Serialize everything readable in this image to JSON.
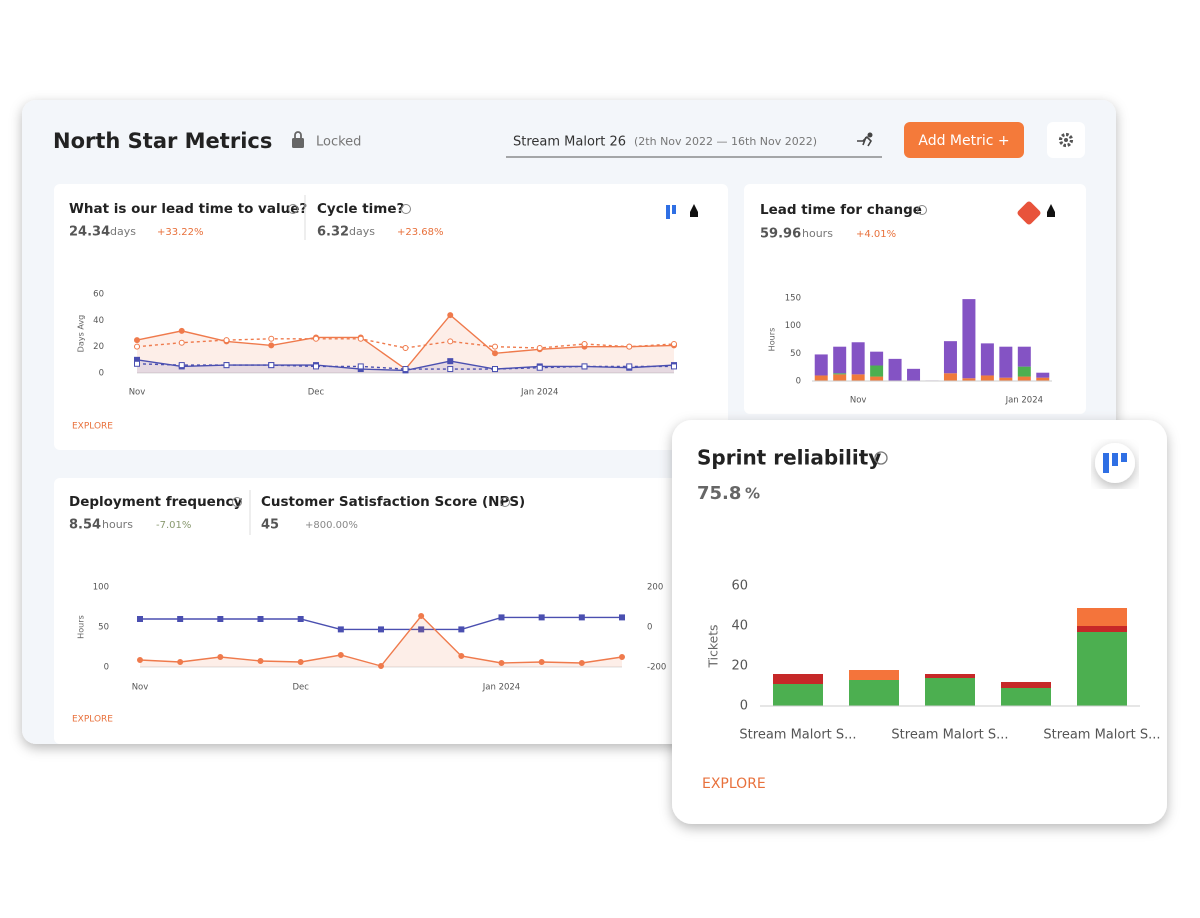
{
  "header": {
    "title": "North Star Metrics",
    "lock_label": "Locked",
    "stream": "Stream Malort 26",
    "date_range": "(2th Nov 2022 — 16th Nov 2022)",
    "add_button": "Add Metric +"
  },
  "cards": [
    {
      "metrics": [
        {
          "title": "What is our lead time to value?",
          "value": 24.34,
          "unit": "days",
          "change": "+33.22%"
        },
        {
          "title": "Cycle time?",
          "value": 6.32,
          "unit": "days",
          "change": "+23.68%"
        }
      ],
      "chart": {
        "type": "line",
        "y_label": "Days Avg",
        "ylim": [
          0,
          60
        ],
        "yticks": [
          0,
          20,
          40,
          60
        ],
        "categories": [
          "Nov",
          null,
          null,
          null,
          "Dec",
          null,
          null,
          null,
          null,
          "Jan 2024",
          null,
          null,
          null
        ],
        "series": [
          {
            "color": "#ef7a4c",
            "values": [
              25,
              32,
              24,
              21,
              27,
              27,
              3,
              44,
              15,
              18,
              20,
              20,
              21
            ],
            "area": true,
            "marker": "circle"
          },
          {
            "color": "#ef7a4c",
            "values": [
              20,
              23,
              25,
              26,
              26,
              26,
              19,
              24,
              20,
              19,
              22,
              20,
              22
            ],
            "dashed": true,
            "marker": "circle-open"
          },
          {
            "color": "#4a4fb0",
            "values": [
              10,
              5,
              6,
              6,
              6,
              3,
              2,
              9,
              3,
              5,
              5,
              4,
              6
            ],
            "area": true,
            "marker": "square"
          },
          {
            "color": "#4a4fb0",
            "values": [
              7,
              6,
              6,
              6,
              5,
              5,
              3,
              3,
              3,
              4,
              5,
              5,
              5
            ],
            "dashed": true,
            "marker": "square-open"
          }
        ]
      },
      "explore": "EXPLORE"
    },
    {
      "metrics": [
        {
          "title": "Lead time for change",
          "value": 59.96,
          "unit": "hours",
          "change": "+4.01%"
        }
      ],
      "chart": {
        "type": "bar",
        "stacked": true,
        "y_label": "Hours",
        "ylim": [
          0,
          150
        ],
        "yticks": [
          0,
          50,
          100,
          150
        ],
        "categories": [
          null,
          null,
          "Nov",
          null,
          null,
          null,
          null,
          null,
          null,
          null,
          null,
          "Jan 2024",
          null
        ],
        "series": [
          {
            "color": "#ef7a3c",
            "values": [
              10,
              12,
              12,
              8,
              0,
              0,
              0,
              14,
              5,
              10,
              6,
              8,
              6
            ]
          },
          {
            "color": "#4caf50",
            "values": [
              0,
              2,
              0,
              20,
              0,
              0,
              0,
              0,
              0,
              0,
              0,
              18,
              0
            ]
          },
          {
            "color": "#8453c4",
            "values": [
              38,
              48,
              58,
              25,
              40,
              22,
              1,
              58,
              143,
              58,
              56,
              36,
              9
            ]
          }
        ]
      }
    },
    {
      "metrics": [
        {
          "title": "Deployment frequency",
          "value": 8.54,
          "unit": "hours",
          "change": "-7.01%"
        },
        {
          "title": "Customer Satisfaction Score (NPS)",
          "value": 45,
          "change": "+800.00%"
        }
      ],
      "chart": {
        "type": "line",
        "y_label": "Hours",
        "ylim": [
          0,
          100
        ],
        "yticks": [
          0,
          50,
          100
        ],
        "y2lim": [
          -200,
          200
        ],
        "y2ticks": [
          -200,
          0,
          200
        ],
        "categories": [
          "Nov",
          null,
          null,
          null,
          "Dec",
          null,
          null,
          null,
          null,
          "Jan 2024",
          null,
          null,
          null
        ],
        "series": [
          {
            "color": "#4a4fb0",
            "values": [
              60,
              60,
              60,
              60,
              60,
              47,
              47,
              47,
              47,
              62,
              62,
              62,
              62
            ],
            "marker": "square"
          },
          {
            "color": "#ef7a4c",
            "axis": "y2",
            "values": [
              -165,
              -175,
              -150,
              -170,
              -175,
              -140,
              -195,
              55,
              -145,
              -180,
              -175,
              -180,
              -150
            ],
            "area": true,
            "marker": "circle"
          }
        ]
      },
      "explore": "EXPLORE"
    },
    {
      "metrics": [
        {
          "title": "Sprint reliability",
          "value": 75.8,
          "unit": "%"
        }
      ],
      "chart": {
        "type": "bar",
        "stacked": true,
        "y_label": "Tickets",
        "ylim": [
          0,
          60
        ],
        "yticks": [
          0,
          20,
          40,
          60
        ],
        "categories": [
          "Stream Malort S...",
          null,
          "Stream Malort S...",
          null,
          "Stream Malort S..."
        ],
        "series": [
          {
            "color": "#4caf50",
            "values": [
              11,
              13,
              14,
              9,
              37
            ]
          },
          {
            "color": "#c62828",
            "values": [
              5,
              0,
              2,
              3,
              3
            ]
          },
          {
            "color": "#f4743b",
            "values": [
              0,
              5,
              0,
              0,
              9
            ]
          }
        ]
      },
      "explore": "EXPLORE"
    }
  ]
}
